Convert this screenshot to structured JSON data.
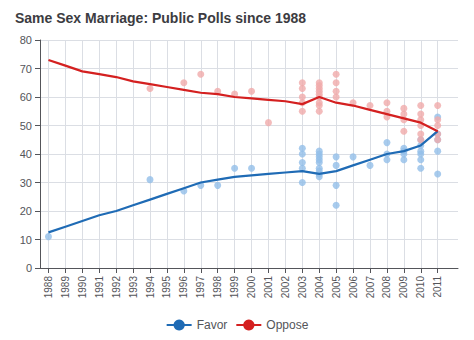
{
  "chart_data": {
    "type": "line",
    "title": "Same Sex Marriage: Public Polls since 1988",
    "xlim": [
      1987.5,
      2012.2
    ],
    "xticks": [
      1988,
      1989,
      1990,
      1991,
      1992,
      1993,
      1994,
      1995,
      1996,
      1997,
      1998,
      1999,
      2000,
      2001,
      2002,
      2003,
      2004,
      2005,
      2006,
      2007,
      2008,
      2009,
      2010,
      2011
    ],
    "ylim": [
      0,
      80
    ],
    "yticks": [
      0,
      10,
      20,
      30,
      40,
      50,
      60,
      70,
      80
    ],
    "grid": true,
    "legend": "bottom",
    "series": [
      {
        "type": "scatter",
        "color": "#92BEE8",
        "x": [
          1988,
          1994,
          1996,
          1997,
          1998,
          1999,
          2000,
          2003,
          2003,
          2003,
          2003,
          2003,
          2004,
          2004,
          2004,
          2004,
          2004,
          2004,
          2004,
          2004,
          2004,
          2005,
          2005,
          2005,
          2005,
          2006,
          2007,
          2008,
          2008,
          2008,
          2009,
          2009,
          2009,
          2009,
          2010,
          2010,
          2010,
          2010,
          2010,
          2010,
          2011,
          2011,
          2011,
          2011,
          2011
        ],
        "values": [
          11,
          31,
          27,
          29,
          29,
          35,
          35,
          30,
          35,
          37,
          40,
          42,
          32,
          33,
          34,
          35,
          37,
          38,
          39,
          40,
          41,
          22,
          29,
          36,
          39,
          39,
          36,
          38,
          40,
          44,
          38,
          40,
          41,
          42,
          35,
          38,
          40,
          41,
          43,
          45,
          33,
          41,
          45,
          47,
          53
        ]
      },
      {
        "type": "scatter",
        "color": "#F0AAAA",
        "x": [
          1994,
          1996,
          1997,
          1998,
          1999,
          2000,
          2001,
          2003,
          2003,
          2003,
          2003,
          2003,
          2004,
          2004,
          2004,
          2004,
          2004,
          2004,
          2004,
          2004,
          2004,
          2005,
          2005,
          2005,
          2005,
          2006,
          2007,
          2008,
          2008,
          2008,
          2009,
          2009,
          2009,
          2009,
          2010,
          2010,
          2010,
          2010,
          2010,
          2010,
          2011,
          2011,
          2011,
          2011,
          2011
        ],
        "values": [
          63,
          65,
          68,
          62,
          61,
          62,
          51,
          55,
          58,
          60,
          63,
          65,
          55,
          57,
          58,
          60,
          61,
          62,
          63,
          64,
          65,
          60,
          62,
          65,
          68,
          58,
          57,
          53,
          55,
          58,
          48,
          52,
          54,
          56,
          45,
          47,
          50,
          52,
          54,
          57,
          45,
          47,
          50,
          52,
          57
        ]
      },
      {
        "name": "Favor",
        "type": "line",
        "color": "#1F6BB5",
        "x": [
          1988,
          1989,
          1990,
          1991,
          1992,
          1993,
          1994,
          1995,
          1996,
          1997,
          1998,
          1999,
          2000,
          2001,
          2002,
          2003,
          2004,
          2005,
          2006,
          2007,
          2008,
          2009,
          2010,
          2011
        ],
        "values": [
          12.5,
          14.5,
          16.5,
          18.5,
          20,
          22,
          24,
          26,
          28,
          30,
          31,
          32,
          32.5,
          33,
          33.5,
          34,
          33,
          34,
          36,
          38,
          40,
          41,
          43,
          48
        ]
      },
      {
        "name": "Oppose",
        "type": "line",
        "color": "#D42020",
        "x": [
          1988,
          1989,
          1990,
          1991,
          1992,
          1993,
          1994,
          1995,
          1996,
          1997,
          1998,
          1999,
          2000,
          2001,
          2002,
          2003,
          2004,
          2005,
          2006,
          2007,
          2008,
          2009,
          2010,
          2011
        ],
        "values": [
          73,
          71,
          69,
          68,
          67,
          65.5,
          64.5,
          63.5,
          62.5,
          61.5,
          61,
          60,
          59.5,
          59,
          58.5,
          57.5,
          60,
          58,
          57,
          55.5,
          54,
          52.5,
          51,
          48
        ]
      }
    ]
  }
}
